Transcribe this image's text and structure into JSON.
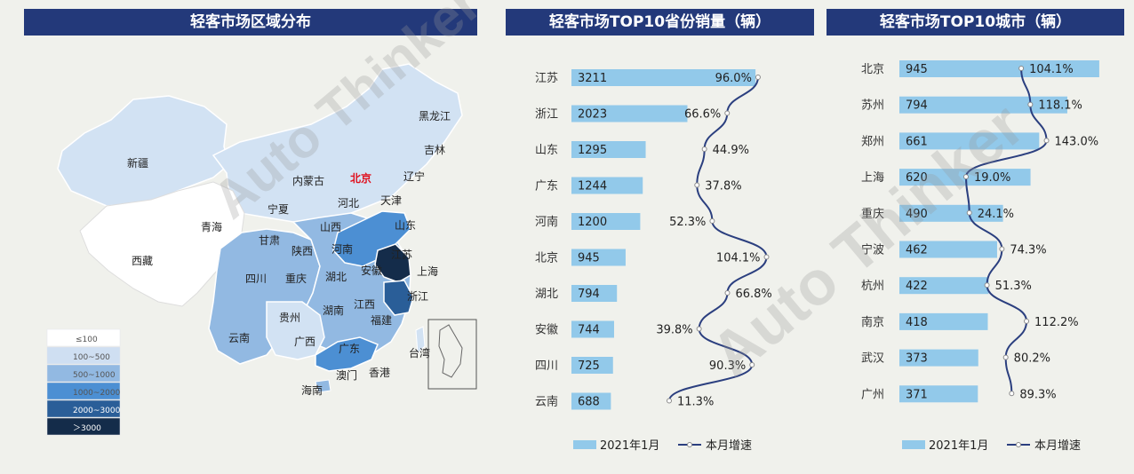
{
  "panels": {
    "map_title": "轻客市场区域分布",
    "prov_title": "轻客市场TOP10省份销量（辆）",
    "city_title": "轻客市场TOP10城市（辆）"
  },
  "legend_map": {
    "items": [
      {
        "label": "≤100",
        "color": "#ffffff"
      },
      {
        "label": "100~500",
        "color": "#cfdff2"
      },
      {
        "label": "500~1000",
        "color": "#92b9e2"
      },
      {
        "label": "1000~2000",
        "color": "#4c8fd3"
      },
      {
        "label": "2000~3000",
        "color": "#2a5e98"
      },
      {
        "label": "＞3000",
        "color": "#142c4a"
      }
    ]
  },
  "map_labels": [
    "新疆",
    "西藏",
    "青海",
    "甘肃",
    "宁夏",
    "内蒙古",
    "黑龙江",
    "吉林",
    "辽宁",
    "北京",
    "天津",
    "河北",
    "山西",
    "陕西",
    "山东",
    "河南",
    "江苏",
    "上海",
    "安徽",
    "浙江",
    "湖北",
    "四川",
    "重庆",
    "贵州",
    "湖南",
    "江西",
    "福建",
    "云南",
    "广西",
    "广东",
    "海南",
    "澳门",
    "香港",
    "台湾"
  ],
  "legend_series": {
    "bar": "2021年1月",
    "line": "本月增速"
  },
  "colors": {
    "bar": "#92c9ea",
    "line": "#2b3f7f",
    "header": "#23397a"
  },
  "chart_data": [
    {
      "type": "bar",
      "title": "轻客市场TOP10省份销量（辆）",
      "categories": [
        "江苏",
        "浙江",
        "山东",
        "广东",
        "河南",
        "北京",
        "湖北",
        "安徽",
        "四川",
        "云南"
      ],
      "series": [
        {
          "name": "2021年1月",
          "values": [
            3211,
            2023,
            1295,
            1244,
            1200,
            945,
            794,
            744,
            725,
            688
          ]
        },
        {
          "name": "本月增速",
          "type": "line",
          "values": [
            96.0,
            66.6,
            44.9,
            37.8,
            52.3,
            104.1,
            66.8,
            39.8,
            90.3,
            11.3
          ],
          "labels": [
            "96.0%",
            "66.6%",
            "44.9%",
            "37.8%",
            "52.3%",
            "104.1%",
            "66.8%",
            "39.8%",
            "90.3%",
            "11.3%"
          ]
        }
      ]
    },
    {
      "type": "bar",
      "title": "轻客市场TOP10城市（辆）",
      "categories": [
        "北京",
        "苏州",
        "郑州",
        "上海",
        "重庆",
        "宁波",
        "杭州",
        "南京",
        "武汉",
        "广州"
      ],
      "series": [
        {
          "name": "2021年1月",
          "values": [
            945,
            794,
            661,
            620,
            490,
            462,
            422,
            418,
            373,
            371
          ]
        },
        {
          "name": "本月增速",
          "type": "line",
          "values": [
            104.1,
            118.1,
            143.0,
            19.0,
            24.1,
            74.3,
            51.3,
            112.2,
            80.2,
            89.3
          ],
          "labels": [
            "104.1%",
            "118.1%",
            "143.0%",
            "19.0%",
            "24.1%",
            "74.3%",
            "51.3%",
            "112.2%",
            "80.2%",
            "89.3%"
          ]
        }
      ]
    }
  ]
}
